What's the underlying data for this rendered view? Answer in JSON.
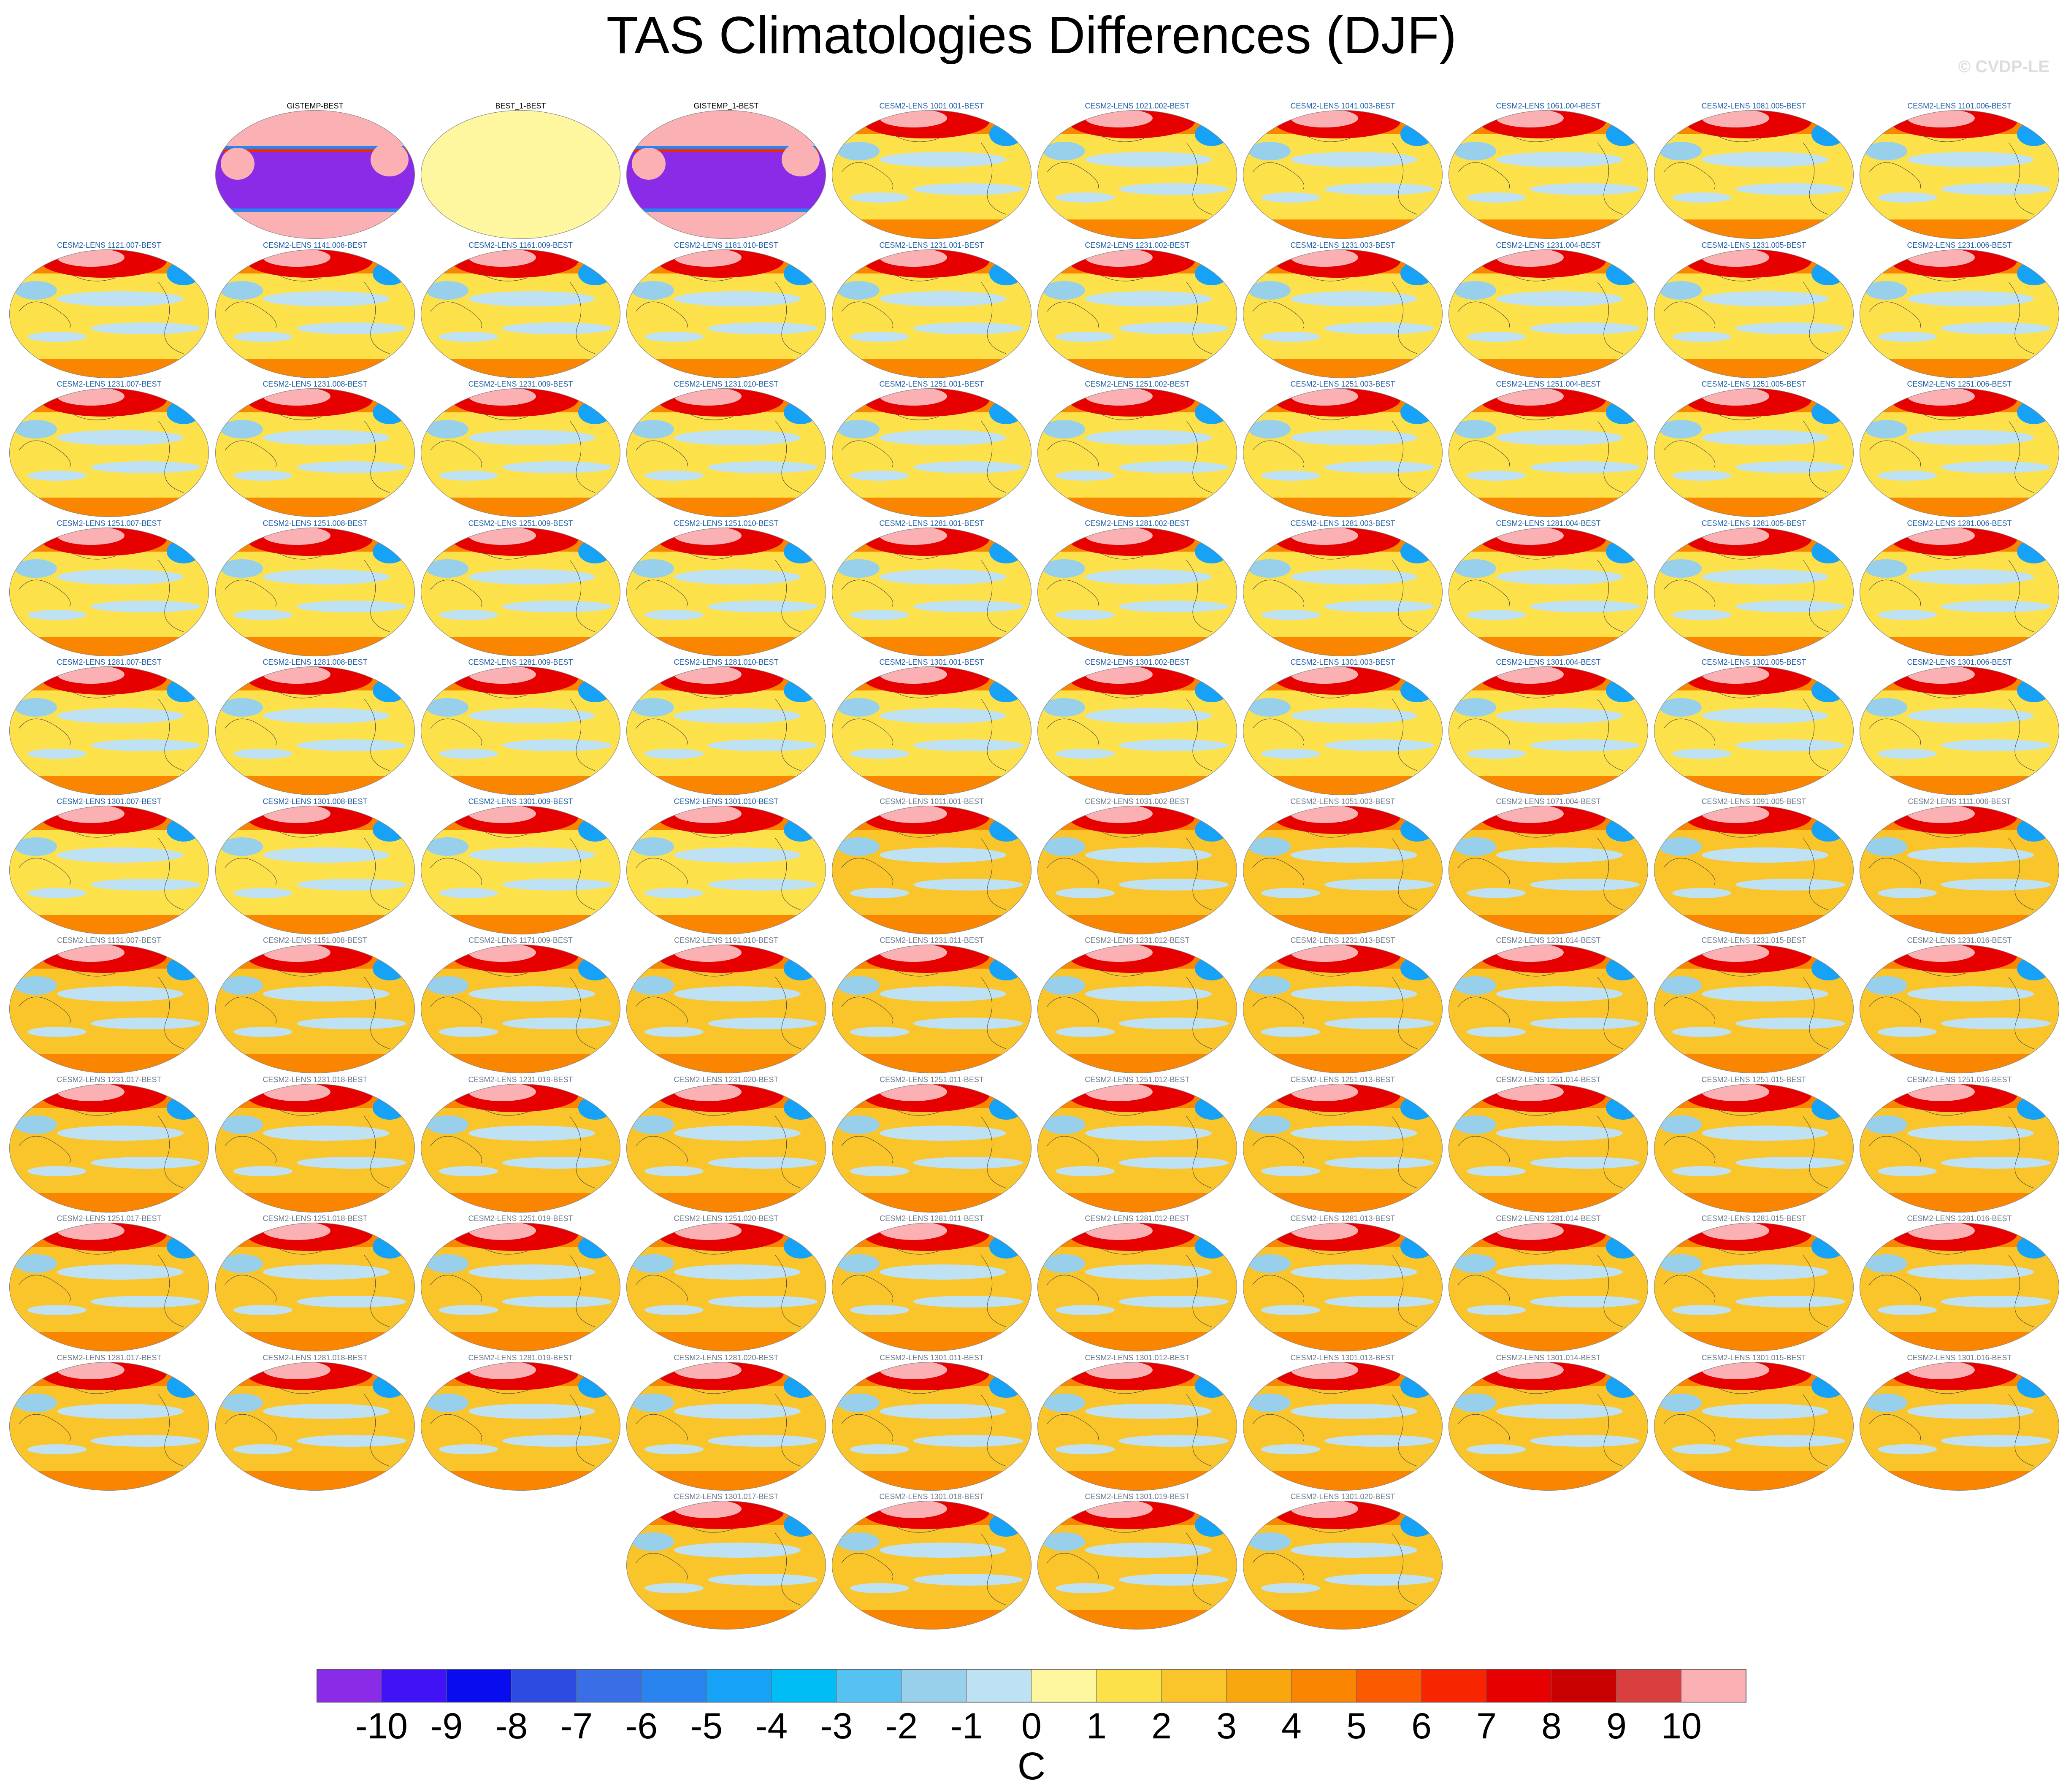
{
  "title": "TAS Climatologies Differences (DJF)",
  "copyright": "© CVDP-LE",
  "colorbar": {
    "units": "C",
    "labels": [
      "-10",
      "-9",
      "-8",
      "-7",
      "-6",
      "-5",
      "-4",
      "-3",
      "-2",
      "-1",
      "0",
      "1",
      "2",
      "3",
      "4",
      "5",
      "6",
      "7",
      "8",
      "9",
      "10"
    ],
    "colors": [
      "#8a2be8",
      "#4012f5",
      "#0a0cf0",
      "#2c4be0",
      "#3a6ee6",
      "#2a84f0",
      "#15a2f7",
      "#00bef5",
      "#56c2f2",
      "#98d0ec",
      "#bfe1f4",
      "#fff6a0",
      "#fde14a",
      "#fac52a",
      "#f9a70e",
      "#f98500",
      "#fb5a00",
      "#f82600",
      "#e60000",
      "#c80000",
      "#da3f3f",
      "#fbb1b4"
    ]
  },
  "panels": [
    {
      "title": "GISTEMP-BEST",
      "kind": "obs_large"
    },
    {
      "title": "BEST_1-BEST",
      "kind": "obs_zero"
    },
    {
      "title": "GISTEMP_1-BEST",
      "kind": "obs_large"
    },
    {
      "title": "CESM2-LENS 1001.001-BEST",
      "kind": "model"
    },
    {
      "title": "CESM2-LENS 1021.002-BEST",
      "kind": "model"
    },
    {
      "title": "CESM2-LENS 1041.003-BEST",
      "kind": "model"
    },
    {
      "title": "CESM2-LENS 1061.004-BEST",
      "kind": "model"
    },
    {
      "title": "CESM2-LENS 1081.005-BEST",
      "kind": "model"
    },
    {
      "title": "CESM2-LENS 1101.006-BEST",
      "kind": "model"
    },
    {
      "title": "CESM2-LENS 1121.007-BEST",
      "kind": "model"
    },
    {
      "title": "CESM2-LENS 1141.008-BEST",
      "kind": "model"
    },
    {
      "title": "CESM2-LENS 1161.009-BEST",
      "kind": "model"
    },
    {
      "title": "CESM2-LENS 1181.010-BEST",
      "kind": "model"
    },
    {
      "title": "CESM2-LENS 1231.001-BEST",
      "kind": "model"
    },
    {
      "title": "CESM2-LENS 1231.002-BEST",
      "kind": "model"
    },
    {
      "title": "CESM2-LENS 1231.003-BEST",
      "kind": "model"
    },
    {
      "title": "CESM2-LENS 1231.004-BEST",
      "kind": "model"
    },
    {
      "title": "CESM2-LENS 1231.005-BEST",
      "kind": "model"
    },
    {
      "title": "CESM2-LENS 1231.006-BEST",
      "kind": "model"
    },
    {
      "title": "CESM2-LENS 1231.007-BEST",
      "kind": "model"
    },
    {
      "title": "CESM2-LENS 1231.008-BEST",
      "kind": "model"
    },
    {
      "title": "CESM2-LENS 1231.009-BEST",
      "kind": "model"
    },
    {
      "title": "CESM2-LENS 1231.010-BEST",
      "kind": "model"
    },
    {
      "title": "CESM2-LENS 1251.001-BEST",
      "kind": "model"
    },
    {
      "title": "CESM2-LENS 1251.002-BEST",
      "kind": "model"
    },
    {
      "title": "CESM2-LENS 1251.003-BEST",
      "kind": "model"
    },
    {
      "title": "CESM2-LENS 1251.004-BEST",
      "kind": "model"
    },
    {
      "title": "CESM2-LENS 1251.005-BEST",
      "kind": "model"
    },
    {
      "title": "CESM2-LENS 1251.006-BEST",
      "kind": "model"
    },
    {
      "title": "CESM2-LENS 1251.007-BEST",
      "kind": "model"
    },
    {
      "title": "CESM2-LENS 1251.008-BEST",
      "kind": "model"
    },
    {
      "title": "CESM2-LENS 1251.009-BEST",
      "kind": "model"
    },
    {
      "title": "CESM2-LENS 1251.010-BEST",
      "kind": "model"
    },
    {
      "title": "CESM2-LENS 1281.001-BEST",
      "kind": "model"
    },
    {
      "title": "CESM2-LENS 1281.002-BEST",
      "kind": "model"
    },
    {
      "title": "CESM2-LENS 1281.003-BEST",
      "kind": "model"
    },
    {
      "title": "CESM2-LENS 1281.004-BEST",
      "kind": "model"
    },
    {
      "title": "CESM2-LENS 1281.005-BEST",
      "kind": "model"
    },
    {
      "title": "CESM2-LENS 1281.006-BEST",
      "kind": "model"
    },
    {
      "title": "CESM2-LENS 1281.007-BEST",
      "kind": "model"
    },
    {
      "title": "CESM2-LENS 1281.008-BEST",
      "kind": "model"
    },
    {
      "title": "CESM2-LENS 1281.009-BEST",
      "kind": "model"
    },
    {
      "title": "CESM2-LENS 1281.010-BEST",
      "kind": "model"
    },
    {
      "title": "CESM2-LENS 1301.001-BEST",
      "kind": "model"
    },
    {
      "title": "CESM2-LENS 1301.002-BEST",
      "kind": "model"
    },
    {
      "title": "CESM2-LENS 1301.003-BEST",
      "kind": "model"
    },
    {
      "title": "CESM2-LENS 1301.004-BEST",
      "kind": "model"
    },
    {
      "title": "CESM2-LENS 1301.005-BEST",
      "kind": "model"
    },
    {
      "title": "CESM2-LENS 1301.006-BEST",
      "kind": "model"
    },
    {
      "title": "CESM2-LENS 1301.007-BEST",
      "kind": "model"
    },
    {
      "title": "CESM2-LENS 1301.008-BEST",
      "kind": "model"
    },
    {
      "title": "CESM2-LENS 1301.009-BEST",
      "kind": "model"
    },
    {
      "title": "CESM2-LENS 1301.010-BEST",
      "kind": "model"
    },
    {
      "title": "CESM2-LENS 1011.001-BEST",
      "kind": "model_b"
    },
    {
      "title": "CESM2-LENS 1031.002-BEST",
      "kind": "model_b"
    },
    {
      "title": "CESM2-LENS 1051.003-BEST",
      "kind": "model_b"
    },
    {
      "title": "CESM2-LENS 1071.004-BEST",
      "kind": "model_b"
    },
    {
      "title": "CESM2-LENS 1091.005-BEST",
      "kind": "model_b"
    },
    {
      "title": "CESM2-LENS 1111.006-BEST",
      "kind": "model_b"
    },
    {
      "title": "CESM2-LENS 1131.007-BEST",
      "kind": "model_b"
    },
    {
      "title": "CESM2-LENS 1151.008-BEST",
      "kind": "model_b"
    },
    {
      "title": "CESM2-LENS 1171.009-BEST",
      "kind": "model_b"
    },
    {
      "title": "CESM2-LENS 1191.010-BEST",
      "kind": "model_b"
    },
    {
      "title": "CESM2-LENS 1231.011-BEST",
      "kind": "model_b"
    },
    {
      "title": "CESM2-LENS 1231.012-BEST",
      "kind": "model_b"
    },
    {
      "title": "CESM2-LENS 1231.013-BEST",
      "kind": "model_b"
    },
    {
      "title": "CESM2-LENS 1231.014-BEST",
      "kind": "model_b"
    },
    {
      "title": "CESM2-LENS 1231.015-BEST",
      "kind": "model_b"
    },
    {
      "title": "CESM2-LENS 1231.016-BEST",
      "kind": "model_b"
    },
    {
      "title": "CESM2-LENS 1231.017-BEST",
      "kind": "model_b"
    },
    {
      "title": "CESM2-LENS 1231.018-BEST",
      "kind": "model_b"
    },
    {
      "title": "CESM2-LENS 1231.019-BEST",
      "kind": "model_b"
    },
    {
      "title": "CESM2-LENS 1231.020-BEST",
      "kind": "model_b"
    },
    {
      "title": "CESM2-LENS 1251.011-BEST",
      "kind": "model_b"
    },
    {
      "title": "CESM2-LENS 1251.012-BEST",
      "kind": "model_b"
    },
    {
      "title": "CESM2-LENS 1251.013-BEST",
      "kind": "model_b"
    },
    {
      "title": "CESM2-LENS 1251.014-BEST",
      "kind": "model_b"
    },
    {
      "title": "CESM2-LENS 1251.015-BEST",
      "kind": "model_b"
    },
    {
      "title": "CESM2-LENS 1251.016-BEST",
      "kind": "model_b"
    },
    {
      "title": "CESM2-LENS 1251.017-BEST",
      "kind": "model_b"
    },
    {
      "title": "CESM2-LENS 1251.018-BEST",
      "kind": "model_b"
    },
    {
      "title": "CESM2-LENS 1251.019-BEST",
      "kind": "model_b"
    },
    {
      "title": "CESM2-LENS 1251.020-BEST",
      "kind": "model_b"
    },
    {
      "title": "CESM2-LENS 1281.011-BEST",
      "kind": "model_b"
    },
    {
      "title": "CESM2-LENS 1281.012-BEST",
      "kind": "model_b"
    },
    {
      "title": "CESM2-LENS 1281.013-BEST",
      "kind": "model_b"
    },
    {
      "title": "CESM2-LENS 1281.014-BEST",
      "kind": "model_b"
    },
    {
      "title": "CESM2-LENS 1281.015-BEST",
      "kind": "model_b"
    },
    {
      "title": "CESM2-LENS 1281.016-BEST",
      "kind": "model_b"
    },
    {
      "title": "CESM2-LENS 1281.017-BEST",
      "kind": "model_b"
    },
    {
      "title": "CESM2-LENS 1281.018-BEST",
      "kind": "model_b"
    },
    {
      "title": "CESM2-LENS 1281.019-BEST",
      "kind": "model_b"
    },
    {
      "title": "CESM2-LENS 1281.020-BEST",
      "kind": "model_b"
    },
    {
      "title": "CESM2-LENS 1301.011-BEST",
      "kind": "model_b"
    },
    {
      "title": "CESM2-LENS 1301.012-BEST",
      "kind": "model_b"
    },
    {
      "title": "CESM2-LENS 1301.013-BEST",
      "kind": "model_b"
    },
    {
      "title": "CESM2-LENS 1301.014-BEST",
      "kind": "model_b"
    },
    {
      "title": "CESM2-LENS 1301.015-BEST",
      "kind": "model_b"
    },
    {
      "title": "CESM2-LENS 1301.016-BEST",
      "kind": "model_b"
    },
    {
      "title": "CESM2-LENS 1301.017-BEST",
      "kind": "model_b"
    },
    {
      "title": "CESM2-LENS 1301.018-BEST",
      "kind": "model_b"
    },
    {
      "title": "CESM2-LENS 1301.019-BEST",
      "kind": "model_b"
    },
    {
      "title": "CESM2-LENS 1301.020-BEST",
      "kind": "model_b"
    }
  ],
  "title_colors": {
    "obs": "#000000",
    "model": "#1f5fa8",
    "model_b": "#6b7b8c"
  }
}
